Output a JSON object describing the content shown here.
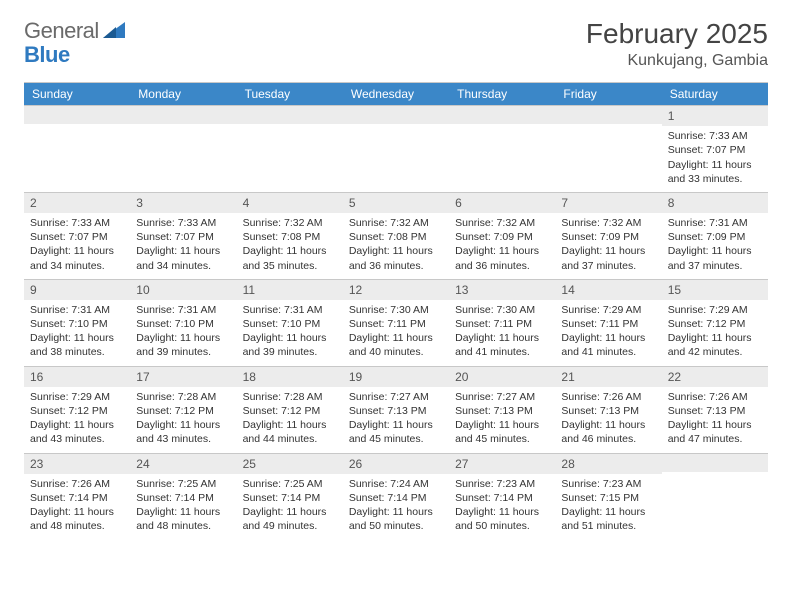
{
  "brand": {
    "text1": "General",
    "text2": "Blue"
  },
  "title": "February 2025",
  "location": "Kunkujang, Gambia",
  "colors": {
    "header_bar": "#3b87c8",
    "daynum_bg": "#ececec",
    "border": "#c8c8c8",
    "text": "#333333",
    "brand_gray": "#6a6a6a",
    "brand_blue": "#2f7ac0"
  },
  "dow": [
    "Sunday",
    "Monday",
    "Tuesday",
    "Wednesday",
    "Thursday",
    "Friday",
    "Saturday"
  ],
  "weeks": [
    [
      {
        "n": "",
        "lines": []
      },
      {
        "n": "",
        "lines": []
      },
      {
        "n": "",
        "lines": []
      },
      {
        "n": "",
        "lines": []
      },
      {
        "n": "",
        "lines": []
      },
      {
        "n": "",
        "lines": []
      },
      {
        "n": "1",
        "lines": [
          "Sunrise: 7:33 AM",
          "Sunset: 7:07 PM",
          "Daylight: 11 hours and 33 minutes."
        ]
      }
    ],
    [
      {
        "n": "2",
        "lines": [
          "Sunrise: 7:33 AM",
          "Sunset: 7:07 PM",
          "Daylight: 11 hours and 34 minutes."
        ]
      },
      {
        "n": "3",
        "lines": [
          "Sunrise: 7:33 AM",
          "Sunset: 7:07 PM",
          "Daylight: 11 hours and 34 minutes."
        ]
      },
      {
        "n": "4",
        "lines": [
          "Sunrise: 7:32 AM",
          "Sunset: 7:08 PM",
          "Daylight: 11 hours and 35 minutes."
        ]
      },
      {
        "n": "5",
        "lines": [
          "Sunrise: 7:32 AM",
          "Sunset: 7:08 PM",
          "Daylight: 11 hours and 36 minutes."
        ]
      },
      {
        "n": "6",
        "lines": [
          "Sunrise: 7:32 AM",
          "Sunset: 7:09 PM",
          "Daylight: 11 hours and 36 minutes."
        ]
      },
      {
        "n": "7",
        "lines": [
          "Sunrise: 7:32 AM",
          "Sunset: 7:09 PM",
          "Daylight: 11 hours and 37 minutes."
        ]
      },
      {
        "n": "8",
        "lines": [
          "Sunrise: 7:31 AM",
          "Sunset: 7:09 PM",
          "Daylight: 11 hours and 37 minutes."
        ]
      }
    ],
    [
      {
        "n": "9",
        "lines": [
          "Sunrise: 7:31 AM",
          "Sunset: 7:10 PM",
          "Daylight: 11 hours and 38 minutes."
        ]
      },
      {
        "n": "10",
        "lines": [
          "Sunrise: 7:31 AM",
          "Sunset: 7:10 PM",
          "Daylight: 11 hours and 39 minutes."
        ]
      },
      {
        "n": "11",
        "lines": [
          "Sunrise: 7:31 AM",
          "Sunset: 7:10 PM",
          "Daylight: 11 hours and 39 minutes."
        ]
      },
      {
        "n": "12",
        "lines": [
          "Sunrise: 7:30 AM",
          "Sunset: 7:11 PM",
          "Daylight: 11 hours and 40 minutes."
        ]
      },
      {
        "n": "13",
        "lines": [
          "Sunrise: 7:30 AM",
          "Sunset: 7:11 PM",
          "Daylight: 11 hours and 41 minutes."
        ]
      },
      {
        "n": "14",
        "lines": [
          "Sunrise: 7:29 AM",
          "Sunset: 7:11 PM",
          "Daylight: 11 hours and 41 minutes."
        ]
      },
      {
        "n": "15",
        "lines": [
          "Sunrise: 7:29 AM",
          "Sunset: 7:12 PM",
          "Daylight: 11 hours and 42 minutes."
        ]
      }
    ],
    [
      {
        "n": "16",
        "lines": [
          "Sunrise: 7:29 AM",
          "Sunset: 7:12 PM",
          "Daylight: 11 hours and 43 minutes."
        ]
      },
      {
        "n": "17",
        "lines": [
          "Sunrise: 7:28 AM",
          "Sunset: 7:12 PM",
          "Daylight: 11 hours and 43 minutes."
        ]
      },
      {
        "n": "18",
        "lines": [
          "Sunrise: 7:28 AM",
          "Sunset: 7:12 PM",
          "Daylight: 11 hours and 44 minutes."
        ]
      },
      {
        "n": "19",
        "lines": [
          "Sunrise: 7:27 AM",
          "Sunset: 7:13 PM",
          "Daylight: 11 hours and 45 minutes."
        ]
      },
      {
        "n": "20",
        "lines": [
          "Sunrise: 7:27 AM",
          "Sunset: 7:13 PM",
          "Daylight: 11 hours and 45 minutes."
        ]
      },
      {
        "n": "21",
        "lines": [
          "Sunrise: 7:26 AM",
          "Sunset: 7:13 PM",
          "Daylight: 11 hours and 46 minutes."
        ]
      },
      {
        "n": "22",
        "lines": [
          "Sunrise: 7:26 AM",
          "Sunset: 7:13 PM",
          "Daylight: 11 hours and 47 minutes."
        ]
      }
    ],
    [
      {
        "n": "23",
        "lines": [
          "Sunrise: 7:26 AM",
          "Sunset: 7:14 PM",
          "Daylight: 11 hours and 48 minutes."
        ]
      },
      {
        "n": "24",
        "lines": [
          "Sunrise: 7:25 AM",
          "Sunset: 7:14 PM",
          "Daylight: 11 hours and 48 minutes."
        ]
      },
      {
        "n": "25",
        "lines": [
          "Sunrise: 7:25 AM",
          "Sunset: 7:14 PM",
          "Daylight: 11 hours and 49 minutes."
        ]
      },
      {
        "n": "26",
        "lines": [
          "Sunrise: 7:24 AM",
          "Sunset: 7:14 PM",
          "Daylight: 11 hours and 50 minutes."
        ]
      },
      {
        "n": "27",
        "lines": [
          "Sunrise: 7:23 AM",
          "Sunset: 7:14 PM",
          "Daylight: 11 hours and 50 minutes."
        ]
      },
      {
        "n": "28",
        "lines": [
          "Sunrise: 7:23 AM",
          "Sunset: 7:15 PM",
          "Daylight: 11 hours and 51 minutes."
        ]
      },
      {
        "n": "",
        "lines": []
      }
    ]
  ]
}
